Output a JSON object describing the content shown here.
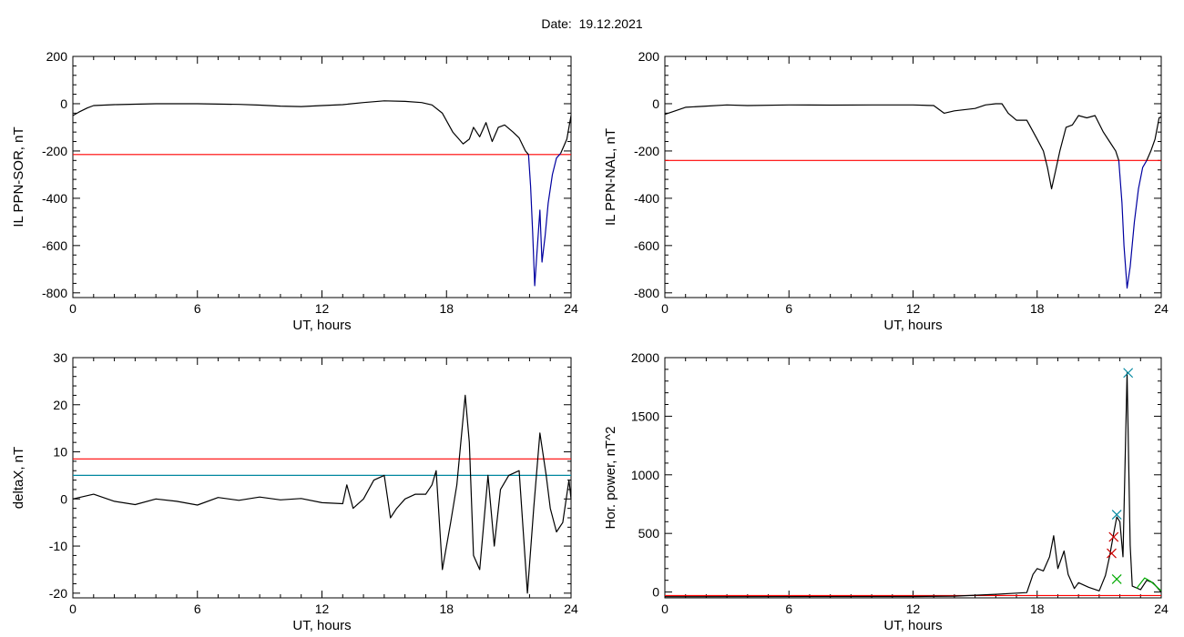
{
  "page": {
    "date_label": "Date:",
    "date_value": "19.12.2021"
  },
  "chart_data": [
    {
      "type": "line",
      "panel": "top-left",
      "title": "",
      "xlabel": "UT, hours",
      "ylabel": "IL PPN-SOR, nT",
      "xlim": [
        0,
        24
      ],
      "ylim": [
        -820,
        200
      ],
      "xticks": [
        0,
        6,
        12,
        18,
        24
      ],
      "yticks": [
        200,
        0,
        -200,
        -400,
        -600,
        -800
      ],
      "threshold_lines": [
        {
          "y": -215,
          "color": "#ff0000"
        }
      ],
      "series": [
        {
          "color": "#000000",
          "points": [
            [
              0,
              -50
            ],
            [
              0.3,
              -35
            ],
            [
              0.7,
              -18
            ],
            [
              1,
              -8
            ],
            [
              2,
              -4
            ],
            [
              3,
              -2
            ],
            [
              4,
              0
            ],
            [
              6,
              0
            ],
            [
              8,
              -3
            ],
            [
              9,
              -6
            ],
            [
              10,
              -10
            ],
            [
              11,
              -12
            ],
            [
              12,
              -8
            ],
            [
              13,
              -4
            ],
            [
              14,
              5
            ],
            [
              15,
              12
            ],
            [
              16,
              10
            ],
            [
              16.8,
              5
            ],
            [
              17.3,
              -5
            ],
            [
              17.8,
              -40
            ],
            [
              18.3,
              -120
            ],
            [
              18.8,
              -170
            ],
            [
              19.1,
              -150
            ],
            [
              19.3,
              -100
            ],
            [
              19.6,
              -140
            ],
            [
              19.9,
              -80
            ],
            [
              20.2,
              -160
            ],
            [
              20.5,
              -100
            ],
            [
              20.8,
              -90
            ],
            [
              21.2,
              -120
            ],
            [
              21.5,
              -145
            ],
            [
              21.8,
              -200
            ],
            [
              21.95,
              -215
            ]
          ]
        },
        {
          "color": "#0000a0",
          "points": [
            [
              21.95,
              -215
            ],
            [
              22.05,
              -350
            ],
            [
              22.15,
              -540
            ],
            [
              22.25,
              -770
            ],
            [
              22.35,
              -640
            ],
            [
              22.5,
              -450
            ],
            [
              22.6,
              -670
            ],
            [
              22.75,
              -560
            ],
            [
              22.9,
              -420
            ],
            [
              23.1,
              -300
            ],
            [
              23.3,
              -230
            ],
            [
              23.5,
              -210
            ]
          ]
        },
        {
          "color": "#000000",
          "points": [
            [
              23.5,
              -210
            ],
            [
              23.65,
              -180
            ],
            [
              23.8,
              -150
            ],
            [
              23.9,
              -100
            ],
            [
              24,
              -50
            ]
          ]
        }
      ]
    },
    {
      "type": "line",
      "panel": "top-right",
      "title": "",
      "xlabel": "UT, hours",
      "ylabel": "IL PPN-NAL, nT",
      "xlim": [
        0,
        24
      ],
      "ylim": [
        -820,
        200
      ],
      "xticks": [
        0,
        6,
        12,
        18,
        24
      ],
      "yticks": [
        200,
        0,
        -200,
        -400,
        -600,
        -800
      ],
      "threshold_lines": [
        {
          "y": -240,
          "color": "#ff0000"
        }
      ],
      "series": [
        {
          "color": "#000000",
          "points": [
            [
              0,
              -45
            ],
            [
              0.5,
              -30
            ],
            [
              1,
              -15
            ],
            [
              2,
              -10
            ],
            [
              3,
              -5
            ],
            [
              4,
              -8
            ],
            [
              6,
              -5
            ],
            [
              8,
              -6
            ],
            [
              10,
              -5
            ],
            [
              12,
              -5
            ],
            [
              13,
              -8
            ],
            [
              13.5,
              -40
            ],
            [
              14,
              -30
            ],
            [
              15,
              -20
            ],
            [
              15.5,
              -5
            ],
            [
              16,
              0
            ],
            [
              16.3,
              0
            ],
            [
              16.6,
              -40
            ],
            [
              17,
              -70
            ],
            [
              17.5,
              -70
            ],
            [
              18,
              -150
            ],
            [
              18.3,
              -200
            ],
            [
              18.5,
              -270
            ],
            [
              18.7,
              -360
            ],
            [
              18.9,
              -280
            ],
            [
              19.1,
              -200
            ],
            [
              19.4,
              -100
            ],
            [
              19.7,
              -90
            ],
            [
              20,
              -50
            ],
            [
              20.4,
              -60
            ],
            [
              20.8,
              -50
            ],
            [
              21.2,
              -120
            ],
            [
              21.5,
              -160
            ],
            [
              21.8,
              -200
            ],
            [
              21.95,
              -240
            ]
          ]
        },
        {
          "color": "#0000a0",
          "points": [
            [
              21.95,
              -240
            ],
            [
              22.1,
              -420
            ],
            [
              22.2,
              -600
            ],
            [
              22.35,
              -780
            ],
            [
              22.5,
              -690
            ],
            [
              22.7,
              -500
            ],
            [
              22.9,
              -360
            ],
            [
              23.1,
              -270
            ],
            [
              23.3,
              -240
            ]
          ]
        },
        {
          "color": "#000000",
          "points": [
            [
              23.3,
              -240
            ],
            [
              23.5,
              -200
            ],
            [
              23.7,
              -150
            ],
            [
              23.9,
              -60
            ],
            [
              24,
              -55
            ]
          ]
        }
      ]
    },
    {
      "type": "line",
      "panel": "bottom-left",
      "title": "",
      "xlabel": "UT, hours",
      "ylabel": "deltaX, nT",
      "xlim": [
        0,
        24
      ],
      "ylim": [
        -21,
        30
      ],
      "xticks": [
        0,
        6,
        12,
        18,
        24
      ],
      "yticks": [
        30,
        20,
        10,
        0,
        -10,
        -20
      ],
      "threshold_lines": [
        {
          "y": 8.5,
          "color": "#ff0000"
        },
        {
          "y": 5,
          "color": "#0088a0"
        }
      ],
      "series": [
        {
          "color": "#000000",
          "points": [
            [
              0,
              0
            ],
            [
              1,
              1
            ],
            [
              2,
              -0.5
            ],
            [
              3,
              -1.2
            ],
            [
              4,
              0
            ],
            [
              5,
              -0.5
            ],
            [
              6,
              -1.3
            ],
            [
              7,
              0.3
            ],
            [
              8,
              -0.3
            ],
            [
              9,
              0.4
            ],
            [
              10,
              -0.2
            ],
            [
              11,
              0.1
            ],
            [
              12,
              -0.8
            ],
            [
              13,
              -1
            ],
            [
              13.2,
              3
            ],
            [
              13.5,
              -2
            ],
            [
              14,
              0
            ],
            [
              14.5,
              4
            ],
            [
              15,
              5
            ],
            [
              15.3,
              -4
            ],
            [
              15.6,
              -2
            ],
            [
              16,
              0
            ],
            [
              16.5,
              1
            ],
            [
              17,
              1
            ],
            [
              17.3,
              3
            ],
            [
              17.5,
              6
            ],
            [
              17.8,
              -15
            ],
            [
              18.2,
              -5
            ],
            [
              18.5,
              3
            ],
            [
              18.9,
              22
            ],
            [
              19.1,
              12
            ],
            [
              19.3,
              -12
            ],
            [
              19.6,
              -15
            ],
            [
              20,
              5
            ],
            [
              20.3,
              -10
            ],
            [
              20.6,
              2
            ],
            [
              21,
              5
            ],
            [
              21.5,
              6
            ],
            [
              21.9,
              -20
            ],
            [
              22.2,
              -2
            ],
            [
              22.5,
              14
            ],
            [
              22.8,
              5
            ],
            [
              23,
              -2
            ],
            [
              23.3,
              -7
            ],
            [
              23.6,
              -5
            ],
            [
              23.9,
              4
            ],
            [
              24,
              0
            ]
          ]
        }
      ]
    },
    {
      "type": "line",
      "panel": "bottom-right",
      "title": "",
      "xlabel": "UT, hours",
      "ylabel": "Hor. power, nT^2",
      "xlim": [
        0,
        24
      ],
      "ylim": [
        -50,
        2000
      ],
      "xticks": [
        0,
        6,
        12,
        18,
        24
      ],
      "yticks": [
        2000,
        1500,
        1000,
        500,
        0
      ],
      "threshold_lines": [
        {
          "y": -30,
          "color": "#ff0000"
        }
      ],
      "series": [
        {
          "color": "#000000",
          "points": [
            [
              0,
              -40
            ],
            [
              12,
              -38
            ],
            [
              14,
              -35
            ],
            [
              16,
              -20
            ],
            [
              17,
              -10
            ],
            [
              17.5,
              -5
            ],
            [
              17.8,
              150
            ],
            [
              18,
              200
            ],
            [
              18.3,
              180
            ],
            [
              18.6,
              300
            ],
            [
              18.8,
              480
            ],
            [
              19,
              200
            ],
            [
              19.3,
              350
            ],
            [
              19.5,
              150
            ],
            [
              19.8,
              30
            ],
            [
              20,
              80
            ],
            [
              20.5,
              40
            ],
            [
              21,
              10
            ],
            [
              21.3,
              140
            ],
            [
              21.5,
              300
            ],
            [
              21.7,
              500
            ],
            [
              21.85,
              640
            ],
            [
              22,
              600
            ],
            [
              22.15,
              300
            ],
            [
              22.35,
              1870
            ],
            [
              22.5,
              400
            ],
            [
              22.6,
              50
            ],
            [
              23,
              20
            ],
            [
              23.3,
              100
            ],
            [
              23.6,
              80
            ],
            [
              24,
              0
            ]
          ]
        },
        {
          "color": "#00aa00",
          "points": [
            [
              22.8,
              30
            ],
            [
              23.2,
              120
            ],
            [
              23.5,
              90
            ],
            [
              24,
              10
            ]
          ]
        }
      ],
      "markers": [
        {
          "x": 22.4,
          "y": 1870,
          "color": "#0088a0"
        },
        {
          "x": 21.85,
          "y": 660,
          "color": "#0088a0"
        },
        {
          "x": 21.7,
          "y": 470,
          "color": "#cc0000"
        },
        {
          "x": 21.6,
          "y": 330,
          "color": "#cc0000"
        },
        {
          "x": 21.85,
          "y": 110,
          "color": "#00aa00"
        }
      ]
    }
  ]
}
